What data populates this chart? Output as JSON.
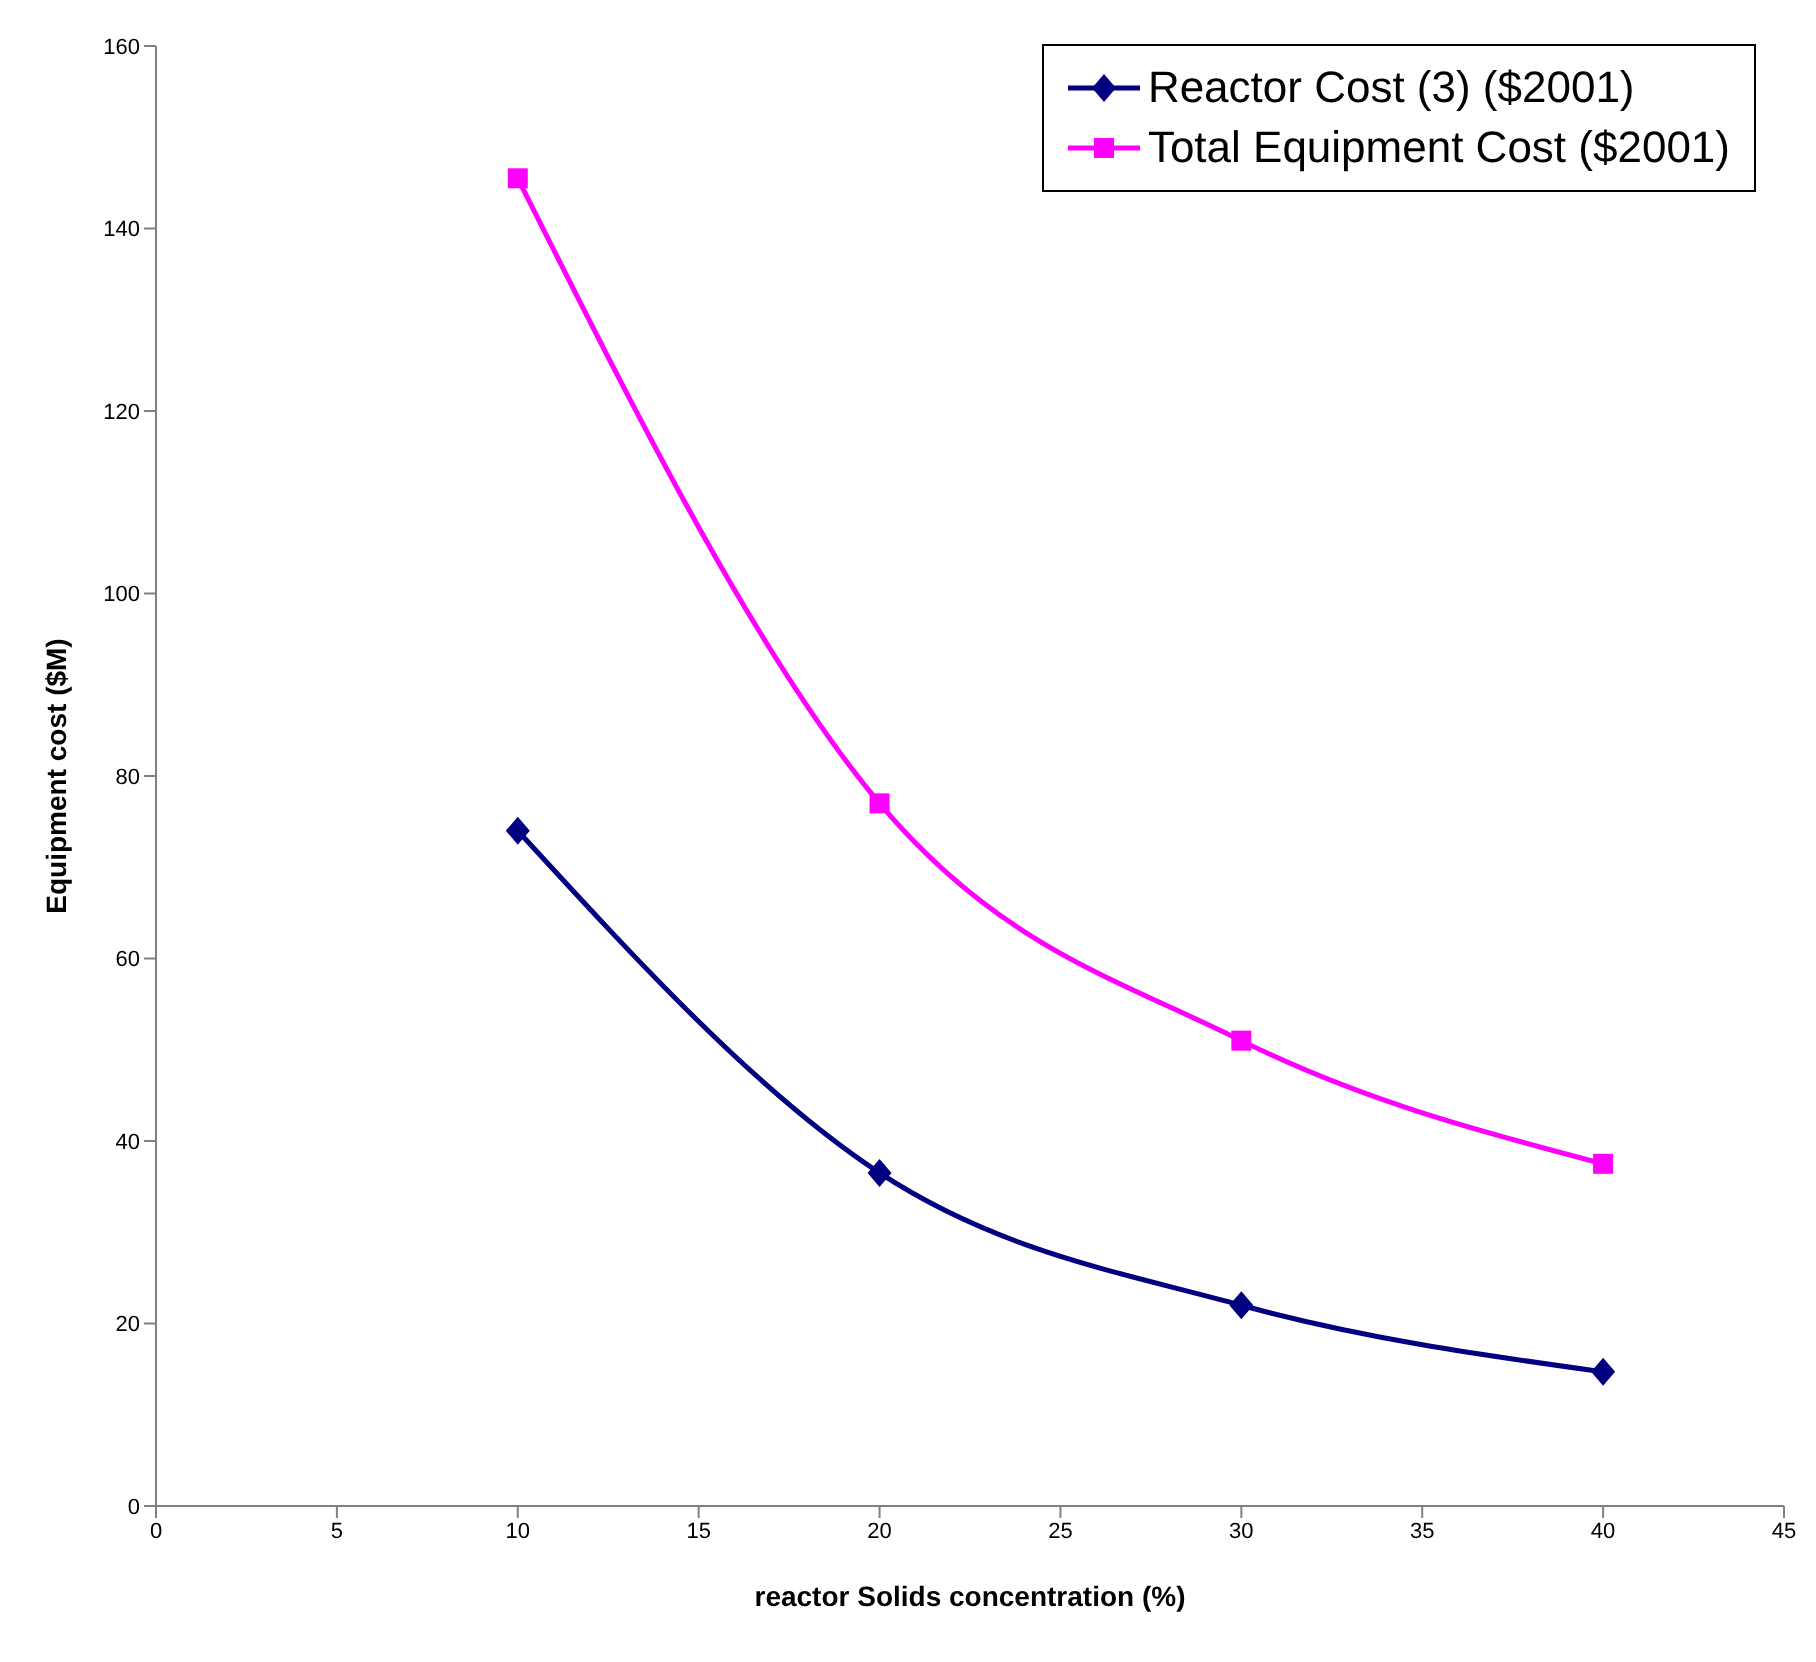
{
  "chart_data": {
    "type": "line",
    "xlabel": "reactor Solids concentration (%)",
    "ylabel": "Equipment cost ($M)",
    "x": [
      10,
      20,
      30,
      40
    ],
    "series": [
      {
        "name": "Reactor Cost (3) ($2001)",
        "color": "#000080",
        "marker": "diamond",
        "values": [
          74,
          36.5,
          22,
          14.7
        ]
      },
      {
        "name": "Total Equipment Cost ($2001)",
        "color": "#ff00ff",
        "marker": "square",
        "values": [
          145.5,
          77,
          51,
          37.5
        ]
      }
    ],
    "xlim": [
      0,
      45
    ],
    "xticks": [
      0,
      5,
      10,
      15,
      20,
      25,
      30,
      35,
      40,
      45
    ],
    "ylim": [
      0,
      160
    ],
    "yticks": [
      0,
      20,
      40,
      60,
      80,
      100,
      120,
      140,
      160
    ],
    "grid": false,
    "legend": "top right",
    "line_style": "solid"
  }
}
